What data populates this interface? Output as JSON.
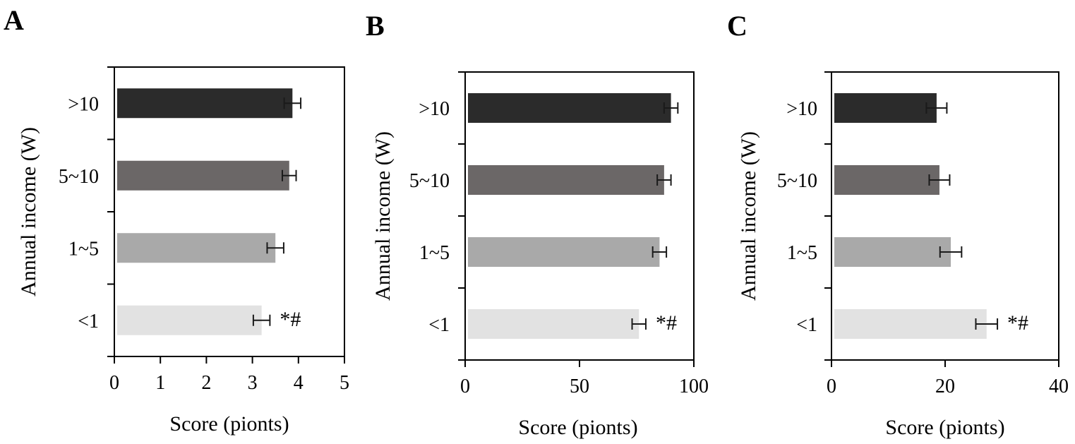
{
  "figure": {
    "panels": [
      {
        "letter": "A",
        "chart_data": {
          "type": "bar",
          "orientation": "horizontal",
          "categories": [
            ">10",
            "5~10",
            "1~5",
            "<1"
          ],
          "values": [
            3.87,
            3.8,
            3.5,
            3.2
          ],
          "errors": [
            0.18,
            0.15,
            0.18,
            0.18
          ],
          "annotations": [
            "",
            "",
            "",
            "*#"
          ],
          "xlabel": "Score (pionts)",
          "ylabel": "Annual income (W)",
          "xlim": [
            0,
            5
          ],
          "xticks": [
            0,
            1,
            2,
            3,
            4,
            5
          ],
          "grid": false,
          "bar_colors": [
            "#2b2b2b",
            "#6b6767",
            "#a9a9a9",
            "#e2e2e2"
          ]
        }
      },
      {
        "letter": "B",
        "chart_data": {
          "type": "bar",
          "orientation": "horizontal",
          "categories": [
            ">10",
            "5~10",
            "1~5",
            "<1"
          ],
          "values": [
            90,
            87,
            85,
            76
          ],
          "errors": [
            3,
            3,
            3,
            3
          ],
          "annotations": [
            "",
            "",
            "",
            "*#"
          ],
          "xlabel": "Score (pionts)",
          "ylabel": "Annual income (W)",
          "xlim": [
            0,
            100
          ],
          "xticks": [
            0,
            50,
            100
          ],
          "grid": false,
          "bar_colors": [
            "#2b2b2b",
            "#6b6767",
            "#a9a9a9",
            "#e2e2e2"
          ]
        }
      },
      {
        "letter": "C",
        "chart_data": {
          "type": "bar",
          "orientation": "horizontal",
          "categories": [
            ">10",
            "5~10",
            "1~5",
            "<1"
          ],
          "values": [
            18.5,
            19,
            21,
            27.3
          ],
          "errors": [
            1.8,
            1.8,
            1.9,
            1.9
          ],
          "annotations": [
            "",
            "",
            "",
            "*#"
          ],
          "xlabel": "Score (pionts)",
          "ylabel": "Annual income (W)",
          "xlim": [
            0,
            40
          ],
          "xticks": [
            0,
            20,
            40
          ],
          "grid": false,
          "bar_colors": [
            "#2b2b2b",
            "#6b6767",
            "#a9a9a9",
            "#e2e2e2"
          ]
        }
      }
    ]
  }
}
